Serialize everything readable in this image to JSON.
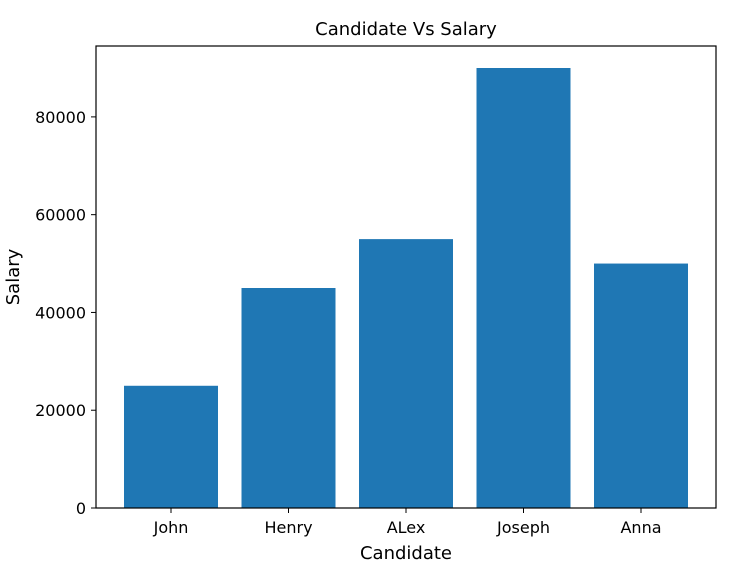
{
  "chart_data": {
    "type": "bar",
    "title": "Candidate Vs Salary",
    "xlabel": "Candidate",
    "ylabel": "Salary",
    "categories": [
      "John",
      "Henry",
      "ALex",
      "Joseph",
      "Anna"
    ],
    "values": [
      25000,
      45000,
      55000,
      90000,
      50000
    ],
    "ylim": [
      0,
      94500
    ],
    "yticks": [
      0,
      20000,
      40000,
      60000,
      80000
    ],
    "grid": false,
    "bar_color": "#1f77b4"
  }
}
